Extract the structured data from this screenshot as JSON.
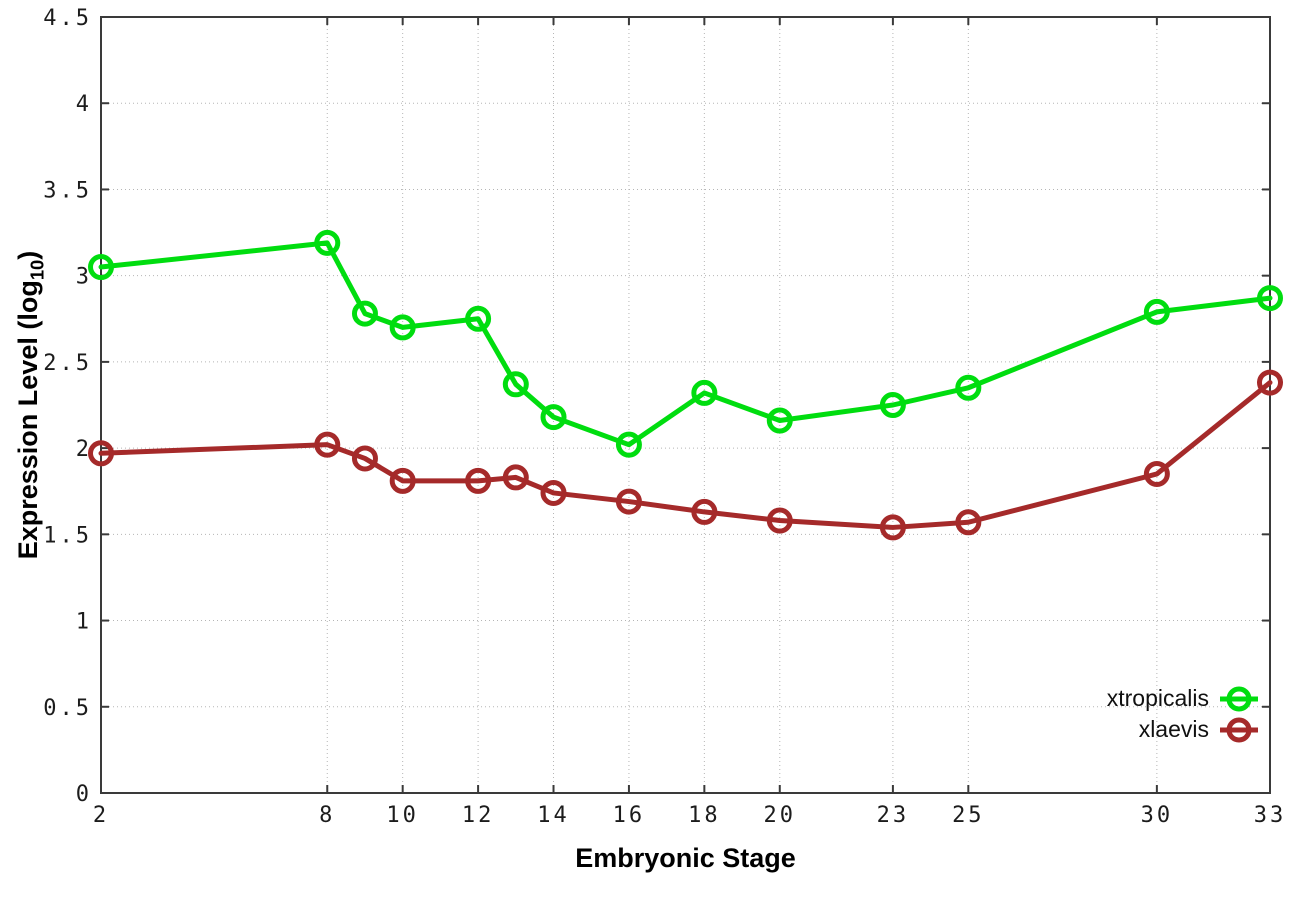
{
  "chart_data": {
    "type": "line",
    "title": "",
    "xlabel": "Embryonic Stage",
    "ylabel": "Expression Level (log10)",
    "ylabel_parts": {
      "pre": "Expression Level (log",
      "sub": "10",
      "post": ")"
    },
    "x": [
      2,
      8,
      9,
      10,
      12,
      13,
      14,
      16,
      18,
      20,
      23,
      25,
      30,
      33
    ],
    "x_ticks": [
      2,
      8,
      10,
      12,
      14,
      16,
      18,
      20,
      23,
      25,
      30,
      33
    ],
    "y_ticks": [
      "0",
      "0.5",
      "1",
      "1.5",
      "2",
      "2.5",
      "3",
      "3.5",
      "4",
      "4.5"
    ],
    "xlim": [
      2,
      33
    ],
    "ylim": [
      0,
      4.5
    ],
    "grid": true,
    "legend_position": "inside-bottom-right",
    "marker": "open-circle",
    "background_color": "#ffffff",
    "series": [
      {
        "name": "xtropicalis",
        "color": "#00dd0f",
        "values": [
          3.05,
          3.19,
          2.78,
          2.7,
          2.75,
          2.37,
          2.18,
          2.02,
          2.32,
          2.16,
          2.25,
          2.35,
          2.79,
          2.87
        ]
      },
      {
        "name": "xlaevis",
        "color": "#a52a2a",
        "values": [
          1.97,
          2.02,
          1.94,
          1.81,
          1.81,
          1.83,
          1.74,
          1.69,
          1.63,
          1.58,
          1.54,
          1.57,
          1.85,
          2.38
        ]
      }
    ]
  }
}
